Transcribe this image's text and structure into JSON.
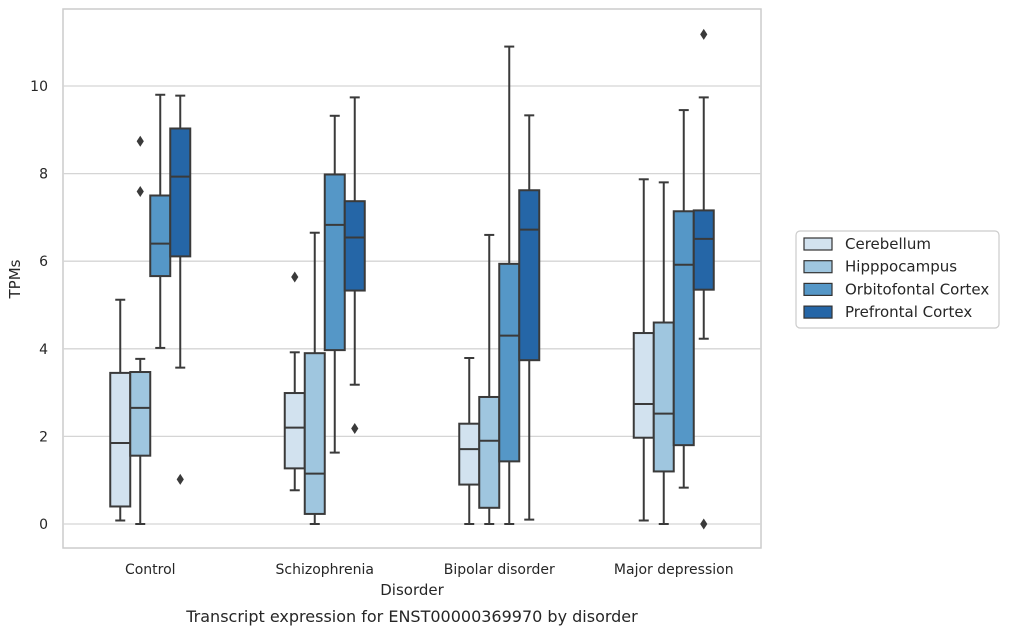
{
  "chart_data": {
    "type": "box",
    "title": "",
    "caption": "Transcript expression for ENST00000369970 by disorder",
    "xlabel": "Disorder",
    "ylabel": "TPMs",
    "ylim": [
      -0.5,
      11.75
    ],
    "yticks": [
      0,
      2,
      4,
      6,
      8,
      10
    ],
    "grid": "horizontal",
    "legend_position": "right",
    "categories": [
      "Control",
      "Schizophrenia",
      "Bipolar disorder",
      "Major depression"
    ],
    "series": [
      {
        "name": "Cerebellum",
        "color": "#d2e2ef",
        "boxes": [
          {
            "whislo": 0.08,
            "q1": 0.4,
            "med": 1.85,
            "q3": 3.45,
            "whishi": 5.12,
            "fliers": []
          },
          {
            "whislo": 0.77,
            "q1": 1.27,
            "med": 2.2,
            "q3": 2.99,
            "whishi": 3.92,
            "fliers": [
              5.64
            ]
          },
          {
            "whislo": 0.0,
            "q1": 0.9,
            "med": 1.71,
            "q3": 2.29,
            "whishi": 3.79,
            "fliers": []
          },
          {
            "whislo": 0.08,
            "q1": 1.97,
            "med": 2.74,
            "q3": 4.36,
            "whishi": 7.87,
            "fliers": []
          }
        ]
      },
      {
        "name": "Hipppocampus",
        "color": "#9fc6df",
        "boxes": [
          {
            "whislo": 0.0,
            "q1": 1.56,
            "med": 2.65,
            "q3": 3.47,
            "whishi": 3.77,
            "fliers": [
              7.59,
              8.74
            ]
          },
          {
            "whislo": 0.0,
            "q1": 0.23,
            "med": 1.15,
            "q3": 3.9,
            "whishi": 6.65,
            "fliers": []
          },
          {
            "whislo": 0.0,
            "q1": 0.37,
            "med": 1.9,
            "q3": 2.9,
            "whishi": 6.6,
            "fliers": []
          },
          {
            "whislo": 0.0,
            "q1": 1.2,
            "med": 2.52,
            "q3": 4.6,
            "whishi": 7.8,
            "fliers": []
          }
        ]
      },
      {
        "name": "Orbitofontal Cortex",
        "color": "#5597c7",
        "boxes": [
          {
            "whislo": 4.02,
            "q1": 5.66,
            "med": 6.4,
            "q3": 7.5,
            "whishi": 9.8,
            "fliers": []
          },
          {
            "whislo": 1.63,
            "q1": 3.97,
            "med": 6.83,
            "q3": 7.98,
            "whishi": 9.32,
            "fliers": []
          },
          {
            "whislo": 0.0,
            "q1": 1.43,
            "med": 4.3,
            "q3": 5.94,
            "whishi": 10.9,
            "fliers": []
          },
          {
            "whislo": 0.83,
            "q1": 1.8,
            "med": 5.92,
            "q3": 7.14,
            "whishi": 9.45,
            "fliers": []
          }
        ]
      },
      {
        "name": "Prefrontal Cortex",
        "color": "#2566a7",
        "boxes": [
          {
            "whislo": 3.57,
            "q1": 6.11,
            "med": 7.93,
            "q3": 9.03,
            "whishi": 9.78,
            "fliers": [
              1.02
            ]
          },
          {
            "whislo": 3.18,
            "q1": 5.33,
            "med": 6.54,
            "q3": 7.37,
            "whishi": 9.74,
            "fliers": [
              2.18
            ]
          },
          {
            "whislo": 0.1,
            "q1": 3.74,
            "med": 6.72,
            "q3": 7.62,
            "whishi": 9.33,
            "fliers": []
          },
          {
            "whislo": 4.23,
            "q1": 5.35,
            "med": 6.51,
            "q3": 7.16,
            "whishi": 9.74,
            "fliers": [
              0.0,
              11.18
            ]
          }
        ]
      }
    ]
  }
}
